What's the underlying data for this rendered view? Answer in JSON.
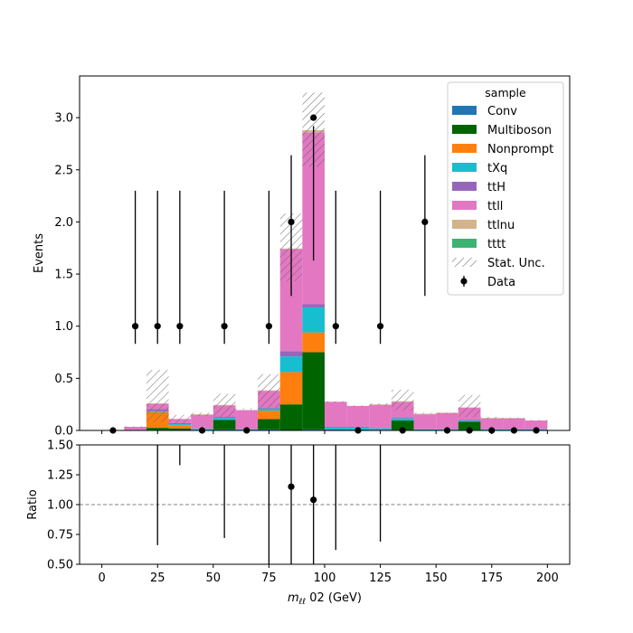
{
  "chart_data": [
    {
      "type": "bar",
      "stacked": true,
      "ylabel": "Events",
      "xlim": [
        -10,
        210
      ],
      "ylim": [
        0,
        3.4
      ],
      "yticks": [
        "0.0",
        "0.5",
        "1.0",
        "1.5",
        "2.0",
        "2.5",
        "3.0"
      ],
      "bin_edges": [
        0,
        10,
        20,
        30,
        40,
        50,
        60,
        70,
        80,
        90,
        100,
        110,
        120,
        130,
        140,
        150,
        160,
        170,
        180,
        190,
        200
      ],
      "legend": {
        "title": "sample",
        "placement": "top-right"
      },
      "series": [
        {
          "name": "Conv",
          "color": "#1f77b4",
          "values": [
            0,
            0,
            0.005,
            0,
            0.005,
            0.01,
            0,
            0.01,
            0,
            0.01,
            0.01,
            0.01,
            0,
            0.005,
            0,
            0,
            0.005,
            0,
            0,
            0
          ]
        },
        {
          "name": "Multiboson",
          "color": "#006400",
          "values": [
            0,
            0,
            0.02,
            0.02,
            0,
            0.09,
            0,
            0.1,
            0.25,
            0.74,
            0,
            0,
            0,
            0.09,
            0,
            0,
            0.08,
            0,
            0,
            0
          ]
        },
        {
          "name": "Nonprompt",
          "color": "#ff7f0e",
          "values": [
            0,
            0,
            0.15,
            0.03,
            0,
            0,
            0,
            0.08,
            0.31,
            0.19,
            0,
            0,
            0,
            0,
            0,
            0,
            0,
            0,
            0,
            0
          ]
        },
        {
          "name": "tXq",
          "color": "#17becf",
          "values": [
            0,
            0.005,
            0.01,
            0.01,
            0.01,
            0.02,
            0.01,
            0.02,
            0.15,
            0.24,
            0.02,
            0.02,
            0.02,
            0.02,
            0.01,
            0.01,
            0.01,
            0.01,
            0.01,
            0.01
          ]
        },
        {
          "name": "ttH",
          "color": "#9467bd",
          "values": [
            0,
            0,
            0.02,
            0.01,
            0.005,
            0.01,
            0.005,
            0.01,
            0.05,
            0.03,
            0.005,
            0.005,
            0.005,
            0.01,
            0.005,
            0.005,
            0.005,
            0.005,
            0.005,
            0.005
          ]
        },
        {
          "name": "ttll",
          "color": "#e377c2",
          "values": [
            0,
            0.03,
            0.05,
            0.04,
            0.13,
            0.11,
            0.18,
            0.16,
            0.98,
            1.65,
            0.24,
            0.2,
            0.22,
            0.15,
            0.14,
            0.15,
            0.12,
            0.1,
            0.1,
            0.08
          ]
        },
        {
          "name": "ttlnu",
          "color": "#d2b48c",
          "values": [
            0,
            0,
            0.005,
            0,
            0.005,
            0.005,
            0,
            0.005,
            0.005,
            0.02,
            0,
            0,
            0.005,
            0.005,
            0.005,
            0.005,
            0,
            0.005,
            0.005,
            0
          ]
        },
        {
          "name": "tttt",
          "color": "#3cb371",
          "values": [
            0,
            0,
            0,
            0,
            0,
            0,
            0,
            0,
            0,
            0,
            0,
            0,
            0,
            0,
            0,
            0,
            0,
            0,
            0,
            0
          ]
        }
      ],
      "stat_unc": {
        "name": "Stat. Unc.",
        "down": [
          0,
          0.03,
          0.08,
          0.06,
          0.14,
          0.13,
          0.2,
          0.22,
          1.43,
          2.53,
          0.27,
          0.23,
          0.24,
          0.19,
          0.16,
          0.16,
          0.13,
          0.11,
          0.11,
          0.09
        ],
        "up": [
          0,
          0.04,
          0.58,
          0.15,
          0.17,
          0.35,
          0.21,
          0.54,
          2.08,
          3.24,
          0.28,
          0.24,
          0.26,
          0.39,
          0.17,
          0.17,
          0.34,
          0.13,
          0.12,
          0.1
        ]
      },
      "data": {
        "name": "Data",
        "x": [
          5,
          15,
          25,
          35,
          45,
          55,
          65,
          75,
          85,
          95,
          105,
          115,
          125,
          135,
          145,
          155,
          165,
          175,
          185,
          195
        ],
        "y": [
          0,
          1,
          1,
          1,
          0,
          1,
          0,
          1,
          2,
          3,
          1,
          0,
          1,
          0,
          2,
          0,
          0,
          0,
          0,
          0
        ],
        "err_low": [
          0,
          0.83,
          0.83,
          0.83,
          0,
          0.83,
          0,
          0.83,
          1.29,
          1.63,
          0.83,
          0,
          0.83,
          0,
          1.29,
          0,
          0,
          0,
          0,
          0
        ],
        "err_high": [
          0,
          2.3,
          2.3,
          2.3,
          0,
          2.3,
          0,
          2.3,
          2.64,
          2.92,
          2.3,
          0,
          2.3,
          0,
          2.64,
          0,
          0,
          0,
          0,
          0
        ]
      }
    },
    {
      "type": "scatter",
      "ylabel": "Ratio",
      "xlabel_prefix": "m",
      "xlabel_subscript": "ℓℓ",
      "xlabel_suffix": " 02 (GeV)",
      "xlim": [
        -10,
        210
      ],
      "ylim": [
        0.5,
        1.5
      ],
      "xticks": [
        "0",
        "25",
        "50",
        "75",
        "100",
        "125",
        "150",
        "175",
        "200"
      ],
      "yticks": [
        "0.50",
        "0.75",
        "1.00",
        "1.25",
        "1.50"
      ],
      "reference_line": 1.0,
      "points": [
        {
          "x": 85,
          "y": 1.15
        },
        {
          "x": 95,
          "y": 1.04
        }
      ],
      "error_bars": [
        {
          "x": 25,
          "low": 0.66,
          "high": 1.5
        },
        {
          "x": 35,
          "low": 1.33,
          "high": 1.5
        },
        {
          "x": 55,
          "low": 0.72,
          "high": 1.5
        },
        {
          "x": 75,
          "low": 0.5,
          "high": 1.5
        },
        {
          "x": 85,
          "low": 0.5,
          "high": 1.5
        },
        {
          "x": 95,
          "low": 0.5,
          "high": 1.5
        },
        {
          "x": 105,
          "low": 0.62,
          "high": 1.5
        },
        {
          "x": 125,
          "low": 0.69,
          "high": 1.5
        }
      ]
    }
  ]
}
